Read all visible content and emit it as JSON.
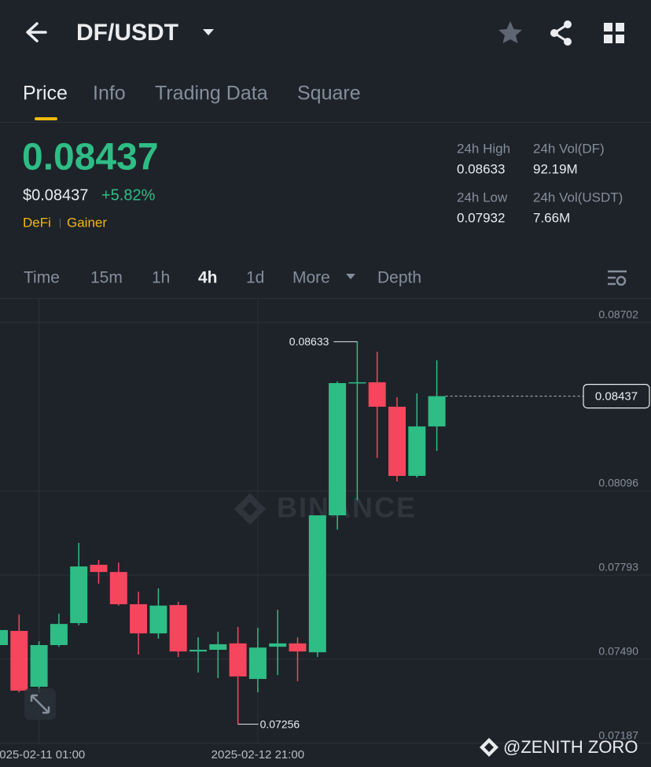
{
  "header": {
    "pair": "DF/USDT"
  },
  "tabs": [
    "Price",
    "Info",
    "Trading Data",
    "Square"
  ],
  "price": {
    "last": "0.08437",
    "fiat": "$0.08437",
    "change": "+5.82%",
    "tags": [
      "DeFi",
      "Gainer"
    ]
  },
  "stats": [
    {
      "label": "24h High",
      "value": "0.08633"
    },
    {
      "label": "24h Vol(DF)",
      "value": "92.19M"
    },
    {
      "label": "24h Low",
      "value": "0.07932"
    },
    {
      "label": "24h Vol(USDT)",
      "value": "7.66M"
    }
  ],
  "intervals": [
    "Time",
    "15m",
    "1h",
    "4h",
    "1d",
    "More",
    "Depth"
  ],
  "watermark": "BINANCE",
  "credit": "@ZENITH ZORO",
  "chart_data": {
    "type": "candlestick",
    "categories": [
      null,
      null,
      "2025-02-11 01:00",
      null,
      null,
      null,
      null,
      null,
      null,
      null,
      null,
      null,
      null,
      "2025-02-12 21:00",
      null,
      null,
      null,
      null,
      null,
      null,
      null,
      null,
      null
    ],
    "open": [
      0.07541,
      0.07592,
      0.07391,
      0.07541,
      0.0762,
      0.0783,
      0.07804,
      0.07688,
      0.07583,
      0.07685,
      0.07518,
      0.07524,
      0.07547,
      0.07419,
      0.07535,
      0.07547,
      0.07515,
      0.08008,
      0.08484,
      0.08487,
      0.08399,
      0.0815,
      0.08328
    ],
    "high": [
      0.07612,
      0.07651,
      0.07555,
      0.07654,
      0.07909,
      0.07847,
      0.07838,
      0.07733,
      0.07745,
      0.07697,
      0.07569,
      0.07589,
      0.07606,
      0.07603,
      0.07668,
      0.07569,
      0.08008,
      0.0849,
      0.08633,
      0.08597,
      0.08433,
      0.08447,
      0.08566
    ],
    "low": [
      0.07527,
      0.07371,
      0.07371,
      0.07535,
      0.07612,
      0.07762,
      0.07683,
      0.07507,
      0.07564,
      0.07498,
      0.07442,
      0.07422,
      0.07256,
      0.07371,
      0.07433,
      0.07411,
      0.07498,
      0.07957,
      0.08062,
      0.08215,
      0.0813,
      0.08144,
      0.0824
    ],
    "close": [
      0.07595,
      0.07377,
      0.07541,
      0.07617,
      0.07824,
      0.07804,
      0.07688,
      0.07583,
      0.07683,
      0.07518,
      0.07524,
      0.07544,
      0.07428,
      0.07532,
      0.07547,
      0.07518,
      0.08008,
      0.08484,
      0.08487,
      0.08399,
      0.0815,
      0.08328,
      0.08437
    ],
    "up_color": "#2ebd85",
    "down_color": "#f6465d",
    "ylim": [
      0.07187,
      0.08787
    ],
    "yticks": [
      0.08702,
      0.08096,
      0.07793,
      {
        "value": 0.0749,
        "label": "0.07490"
      },
      0.07187
    ],
    "grid": true,
    "max_label": 0.08633,
    "min_label": 0.07256,
    "last_price": 0.08437
  }
}
